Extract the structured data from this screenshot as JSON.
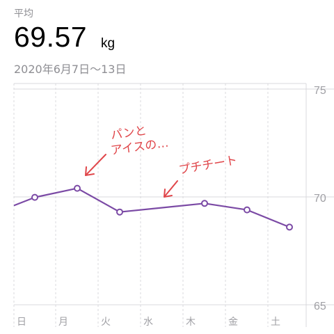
{
  "header": {
    "average_label": "平均",
    "average_value": "69.57",
    "unit": "kg",
    "date_range": "2020年6月7日〜13日"
  },
  "colors": {
    "line": "#7b4aa5",
    "grid": "#d8d8dc",
    "axis_text": "#a0a0a5",
    "annotation": "#e0464a"
  },
  "chart_data": {
    "type": "line",
    "categories": [
      "日",
      "月",
      "火",
      "水",
      "木",
      "金",
      "土"
    ],
    "series": [
      {
        "values": [
          69.98,
          70.4,
          69.3,
          null,
          69.7,
          69.4,
          68.6
        ],
        "line_start": 69.6,
        "line_bridge_wed": 69.5
      }
    ],
    "ylim": [
      65,
      75
    ],
    "yticks": [
      "75",
      "70",
      "65"
    ],
    "grid": true
  },
  "annotations": [
    {
      "line1": "パンと",
      "line2": "アイスの…"
    },
    {
      "line1": "プチチート",
      "line2": ""
    }
  ]
}
